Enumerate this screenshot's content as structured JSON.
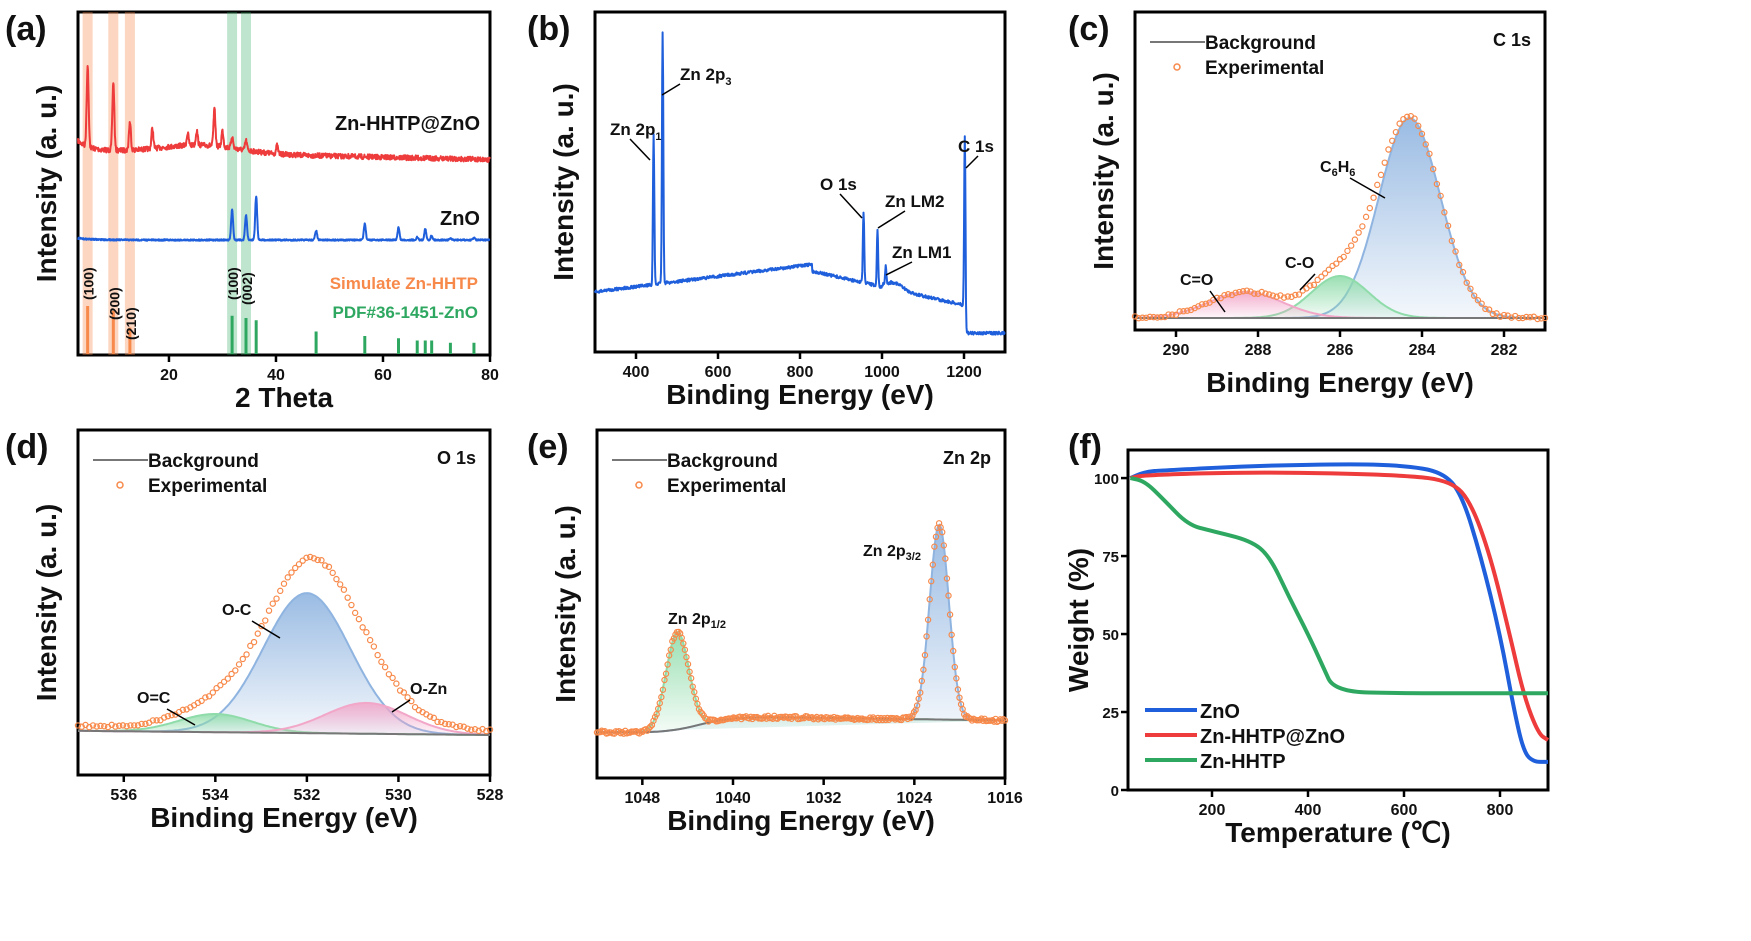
{
  "colors": {
    "red": "#ee3b3b",
    "blue": "#1f5fdc",
    "green": "#2ea861",
    "orange": "#f7894a",
    "fit_blue": "#8fb4e0",
    "fit_green": "#8fdcaa",
    "fit_pink": "#f2a6c8",
    "background": "#777777"
  },
  "chart_data": [
    {
      "id": "a",
      "panel_label": "(a)",
      "type": "line",
      "xlabel": "2 Theta",
      "ylabel": "Intensity (a. u.)",
      "xlim": [
        3,
        80
      ],
      "xticks": [
        20,
        40,
        60,
        80
      ],
      "yticks": [],
      "series": [
        {
          "name": "Zn-HHTP@ZnO",
          "color": "#ee3b3b",
          "peaks_deg": [
            4.8,
            9.6,
            12.7,
            16.9,
            23.5,
            25.2,
            28.5,
            30.0,
            31.8,
            34.4,
            40.2
          ],
          "peak_heights": [
            1.0,
            0.85,
            0.35,
            0.25,
            0.15,
            0.18,
            0.45,
            0.2,
            0.15,
            0.12,
            0.1
          ]
        },
        {
          "name": "ZnO",
          "color": "#1f5fdc",
          "peaks_deg": [
            31.8,
            34.4,
            36.3,
            47.5,
            56.6,
            62.9,
            66.4,
            67.9,
            69.1,
            72.6,
            77.0
          ],
          "peak_heights": [
            0.55,
            0.45,
            0.8,
            0.17,
            0.3,
            0.23,
            0.05,
            0.2,
            0.08,
            0.03,
            0.04
          ]
        }
      ],
      "references": [
        {
          "name": "Simulate Zn-HHTP",
          "color": "#f7894a",
          "positions": [
            4.8,
            9.6,
            12.7
          ],
          "heights": [
            1.0,
            0.9,
            0.55
          ],
          "hkl": [
            "(100)",
            "(200)",
            "(210)"
          ]
        },
        {
          "name": "PDF#36-1451-ZnO",
          "color": "#2ea861",
          "positions": [
            31.8,
            34.4,
            36.3,
            47.5,
            56.6,
            62.9,
            66.4,
            67.9,
            69.1,
            72.6,
            77.0
          ],
          "heights": [
            0.85,
            0.8,
            0.75,
            0.5,
            0.4,
            0.35,
            0.3,
            0.3,
            0.3,
            0.25,
            0.25
          ],
          "hkl": [
            "(100)",
            "(002)"
          ]
        }
      ],
      "highlight_bands_deg": {
        "orange": [
          4.8,
          9.6,
          12.7
        ],
        "green": [
          31.8,
          34.4
        ]
      }
    },
    {
      "id": "b",
      "panel_label": "(b)",
      "type": "line",
      "xlabel": "Binding Energy (eV)",
      "ylabel": "Intensity (a. u.)",
      "xlim": [
        300,
        1300
      ],
      "xticks": [
        400,
        600,
        800,
        1000,
        1200
      ],
      "yticks": [],
      "series": [
        {
          "color": "#1f5fdc",
          "peaks_eV": [
            443,
            465,
            955,
            989,
            1009,
            1202
          ],
          "peak_heights": [
            0.6,
            1.0,
            0.28,
            0.22,
            0.07,
            0.68
          ]
        }
      ],
      "annotations": [
        {
          "text": "Zn 2p",
          "sub": "1",
          "at": 443
        },
        {
          "text": "Zn 2p",
          "sub": "3",
          "at": 465
        },
        {
          "text": "O 1s",
          "sub": "",
          "at": 955
        },
        {
          "text": "Zn LM2",
          "sub": "",
          "at": 989
        },
        {
          "text": "Zn LM1",
          "sub": "",
          "at": 1009
        },
        {
          "text": "C 1s",
          "sub": "",
          "at": 1202
        }
      ]
    },
    {
      "id": "c",
      "panel_label": "(c)",
      "type": "line",
      "title": "C 1s",
      "xlabel": "Binding Energy (eV)",
      "ylabel": "Intensity (a. u.)",
      "xlim": [
        291,
        281
      ],
      "xticks": [
        290,
        288,
        286,
        284,
        282
      ],
      "yticks": [],
      "legend": [
        "Background",
        "Experimental"
      ],
      "components": [
        {
          "label": "C",
          "sub1": "6",
          "mid": "H",
          "sub2": "6",
          "center": 284.3,
          "height": 1.0,
          "sigma": 0.75,
          "color": "#8fb4e0"
        },
        {
          "label": "C-O",
          "center": 286.0,
          "height": 0.21,
          "sigma": 0.7,
          "color": "#8fdcaa"
        },
        {
          "label": "C=O",
          "center": 288.3,
          "height": 0.13,
          "sigma": 0.9,
          "color": "#f2a6c8"
        }
      ]
    },
    {
      "id": "d",
      "panel_label": "(d)",
      "type": "line",
      "title": "O 1s",
      "xlabel": "Binding Energy (eV)",
      "ylabel": "Intensity (a. u.)",
      "xlim": [
        537,
        528
      ],
      "xticks": [
        536,
        534,
        532,
        530,
        528
      ],
      "yticks": [],
      "legend": [
        "Background",
        "Experimental"
      ],
      "components": [
        {
          "label": "O-C",
          "center": 532.0,
          "height": 1.0,
          "sigma": 0.95,
          "color": "#8fb4e0"
        },
        {
          "label": "O=C",
          "center": 534.0,
          "height": 0.13,
          "sigma": 0.8,
          "color": "#8fdcaa"
        },
        {
          "label": "O-Zn",
          "center": 530.7,
          "height": 0.22,
          "sigma": 0.9,
          "color": "#f2a6c8"
        }
      ]
    },
    {
      "id": "e",
      "panel_label": "(e)",
      "type": "line",
      "title": "Zn 2p",
      "xlabel": "Binding Energy (eV)",
      "ylabel": "Intensity (a. u.)",
      "xlim": [
        1052,
        1016
      ],
      "xticks": [
        1048,
        1040,
        1032,
        1024,
        1016
      ],
      "yticks": [],
      "legend": [
        "Background",
        "Experimental"
      ],
      "components": [
        {
          "label": "Zn 2p",
          "sub": "3/2",
          "center": 1021.8,
          "height": 1.0,
          "sigma": 0.85,
          "color": "#8fb4e0"
        },
        {
          "label": "Zn 2p",
          "sub": "1/2",
          "center": 1044.9,
          "height": 0.5,
          "sigma": 1.0,
          "color": "#8fdcaa"
        }
      ]
    },
    {
      "id": "f",
      "panel_label": "(f)",
      "type": "line",
      "xlabel": "Temperature (℃)",
      "ylabel": "Weight (%)",
      "xlim": [
        25,
        900
      ],
      "ylim": [
        0,
        109
      ],
      "xticks": [
        200,
        400,
        600,
        800
      ],
      "yticks": [
        0,
        25,
        50,
        75,
        100
      ],
      "legend_position": "bottom-left",
      "series": [
        {
          "name": "ZnO",
          "color": "#1f5fdc",
          "x": [
            30,
            60,
            100,
            300,
            500,
            600,
            680,
            720,
            760,
            800,
            830,
            850,
            870,
            900
          ],
          "y": [
            100,
            102,
            102.5,
            104,
            104.5,
            104,
            102,
            95,
            75,
            50,
            25,
            12,
            9,
            9
          ]
        },
        {
          "name": "Zn-HHTP@ZnO",
          "color": "#ee3b3b",
          "x": [
            30,
            60,
            300,
            600,
            700,
            740,
            780,
            820,
            850,
            880,
            900
          ],
          "y": [
            100,
            101,
            102,
            101,
            99,
            92,
            75,
            50,
            30,
            18,
            16
          ]
        },
        {
          "name": "Zn-HHTP",
          "color": "#2ea861",
          "x": [
            30,
            60,
            100,
            150,
            200,
            280,
            320,
            360,
            400,
            430,
            455,
            600,
            900
          ],
          "y": [
            100,
            99,
            93,
            85,
            83,
            80,
            75,
            62,
            50,
            40,
            31.5,
            31,
            31
          ]
        }
      ]
    }
  ]
}
